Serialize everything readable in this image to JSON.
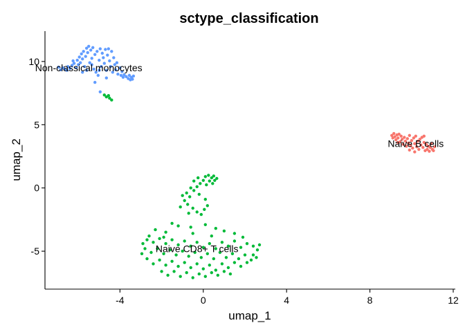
{
  "chart_data": {
    "type": "scatter",
    "title": "sctype_classification",
    "xlabel": "umap_1",
    "ylabel": "umap_2",
    "xlim": [
      -7.6,
      12.1
    ],
    "ylim": [
      -8.0,
      12.4
    ],
    "x_ticks": [
      -4,
      0,
      4,
      8,
      12
    ],
    "y_ticks": [
      -5,
      0,
      5,
      10
    ],
    "grid": false,
    "legend": "none",
    "cluster_labels": [
      {
        "text": "Non-classical monocytes",
        "x": -5.5,
        "y": 9.5
      },
      {
        "text": "Naive B cells",
        "x": 10.2,
        "y": 3.5
      },
      {
        "text": "Naive CD8+ T cells",
        "x": -0.3,
        "y": -4.8
      }
    ],
    "series": [
      {
        "color": "#619CFF",
        "points": [
          [
            -6.95,
            9.55
          ],
          [
            -6.85,
            9.35
          ],
          [
            -6.75,
            9.5
          ],
          [
            -6.65,
            9.4
          ],
          [
            -6.55,
            9.3
          ],
          [
            -6.5,
            9.6
          ],
          [
            -6.4,
            9.45
          ],
          [
            -6.3,
            9.7
          ],
          [
            -6.2,
            9.85
          ],
          [
            -6.1,
            9.5
          ],
          [
            -6.05,
            10.1
          ],
          [
            -6.0,
            9.75
          ],
          [
            -5.95,
            10.35
          ],
          [
            -5.9,
            9.9
          ],
          [
            -5.85,
            10.6
          ],
          [
            -5.8,
            10.2
          ],
          [
            -5.75,
            10.8
          ],
          [
            -5.7,
            9.6
          ],
          [
            -5.65,
            10.4
          ],
          [
            -5.6,
            11.05
          ],
          [
            -5.55,
            10.7
          ],
          [
            -5.5,
            11.2
          ],
          [
            -5.45,
            9.9
          ],
          [
            -5.4,
            10.9
          ],
          [
            -5.35,
            10.25
          ],
          [
            -5.3,
            11.1
          ],
          [
            -5.25,
            9.4
          ],
          [
            -5.2,
            10.55
          ],
          [
            -5.15,
            9.15
          ],
          [
            -5.1,
            10.8
          ],
          [
            -5.05,
            8.9
          ],
          [
            -5.0,
            10.1
          ],
          [
            -4.95,
            11.0
          ],
          [
            -4.9,
            9.6
          ],
          [
            -4.85,
            10.65
          ],
          [
            -4.8,
            10.3
          ],
          [
            -4.75,
            9.85
          ],
          [
            -4.7,
            10.95
          ],
          [
            -4.65,
            9.3
          ],
          [
            -4.6,
            10.5
          ],
          [
            -4.55,
            11.0
          ],
          [
            -4.5,
            10.05
          ],
          [
            -4.45,
            9.6
          ],
          [
            -4.4,
            10.8
          ],
          [
            -4.35,
            9.15
          ],
          [
            -4.3,
            10.3
          ],
          [
            -4.25,
            9.75
          ],
          [
            -4.2,
            9.35
          ],
          [
            -4.15,
            9.9
          ],
          [
            -4.1,
            9.0
          ],
          [
            -4.0,
            9.5
          ],
          [
            -3.95,
            8.9
          ],
          [
            -3.9,
            9.2
          ],
          [
            -3.85,
            8.75
          ],
          [
            -3.8,
            8.95
          ],
          [
            -3.7,
            8.8
          ],
          [
            -3.6,
            8.65
          ],
          [
            -3.55,
            8.9
          ],
          [
            -3.5,
            8.55
          ],
          [
            -3.45,
            8.75
          ],
          [
            -3.4,
            8.6
          ],
          [
            -3.35,
            8.85
          ],
          [
            -5.6,
            9.3
          ],
          [
            -5.35,
            9.75
          ],
          [
            -5.8,
            9.15
          ],
          [
            -6.25,
            10.05
          ],
          [
            -5.0,
            9.3
          ],
          [
            -4.65,
            8.7
          ],
          [
            -4.95,
            7.6
          ],
          [
            -5.2,
            8.35
          ]
        ]
      },
      {
        "color": "#F8766D",
        "points": [
          [
            9.05,
            4.15
          ],
          [
            9.1,
            3.95
          ],
          [
            9.15,
            4.3
          ],
          [
            9.2,
            4.05
          ],
          [
            9.25,
            3.8
          ],
          [
            9.3,
            4.2
          ],
          [
            9.35,
            3.95
          ],
          [
            9.4,
            4.25
          ],
          [
            9.45,
            3.65
          ],
          [
            9.5,
            4.1
          ],
          [
            9.55,
            3.85
          ],
          [
            9.6,
            3.45
          ],
          [
            9.65,
            4.0
          ],
          [
            9.7,
            3.7
          ],
          [
            9.75,
            3.3
          ],
          [
            9.8,
            3.9
          ],
          [
            9.85,
            3.55
          ],
          [
            9.9,
            4.15
          ],
          [
            9.95,
            3.35
          ],
          [
            10.0,
            3.75
          ],
          [
            10.05,
            3.15
          ],
          [
            10.1,
            3.95
          ],
          [
            10.15,
            3.5
          ],
          [
            10.2,
            4.1
          ],
          [
            10.25,
            3.25
          ],
          [
            10.3,
            3.7
          ],
          [
            10.35,
            3.05
          ],
          [
            10.4,
            3.85
          ],
          [
            10.45,
            3.4
          ],
          [
            10.5,
            4.0
          ],
          [
            10.55,
            3.2
          ],
          [
            10.6,
            3.6
          ],
          [
            10.65,
            2.95
          ],
          [
            10.7,
            3.45
          ],
          [
            10.75,
            3.05
          ],
          [
            10.8,
            3.3
          ],
          [
            10.85,
            2.9
          ],
          [
            10.9,
            3.2
          ],
          [
            10.95,
            3.5
          ],
          [
            11.0,
            3.05
          ],
          [
            11.05,
            2.95
          ],
          [
            11.1,
            3.25
          ],
          [
            9.35,
            3.6
          ],
          [
            9.9,
            3.0
          ],
          [
            10.6,
            4.1
          ],
          [
            10.15,
            2.85
          ]
        ]
      },
      {
        "color": "#00BA38",
        "points": [
          [
            -4.75,
            7.35
          ],
          [
            -4.65,
            7.2
          ],
          [
            -4.55,
            7.3
          ],
          [
            -4.5,
            7.1
          ],
          [
            -4.4,
            6.95
          ],
          [
            0.1,
            0.9
          ],
          [
            0.25,
            1.0
          ],
          [
            0.4,
            0.8
          ],
          [
            0.5,
            0.95
          ],
          [
            0.55,
            0.6
          ],
          [
            0.45,
            0.35
          ],
          [
            0.3,
            0.55
          ],
          [
            0.15,
            0.25
          ],
          [
            0.0,
            0.6
          ],
          [
            -0.15,
            0.35
          ],
          [
            -0.3,
            0.1
          ],
          [
            -0.45,
            -0.2
          ],
          [
            -0.6,
            0.0
          ],
          [
            -0.8,
            -0.4
          ],
          [
            -0.65,
            -0.7
          ],
          [
            -0.9,
            -1.0
          ],
          [
            -1.0,
            -0.6
          ],
          [
            -0.75,
            -1.3
          ],
          [
            -0.5,
            -1.6
          ],
          [
            -0.3,
            -1.9
          ],
          [
            -0.1,
            -2.1
          ],
          [
            0.05,
            -1.7
          ],
          [
            0.2,
            -1.4
          ],
          [
            0.1,
            -0.9
          ],
          [
            -0.2,
            -0.5
          ],
          [
            -0.45,
            0.55
          ],
          [
            -0.25,
            0.8
          ],
          [
            0.65,
            0.75
          ],
          [
            -0.7,
            -2.0
          ],
          [
            -1.1,
            -1.5
          ],
          [
            -1.5,
            -2.8
          ],
          [
            -1.2,
            -3.0
          ],
          [
            -0.6,
            -3.1
          ],
          [
            0.1,
            -2.9
          ],
          [
            0.6,
            -3.2
          ],
          [
            1.0,
            -3.4
          ],
          [
            -2.3,
            -3.3
          ],
          [
            -1.8,
            -3.5
          ],
          [
            -2.6,
            -3.8
          ],
          [
            1.5,
            -3.6
          ],
          [
            -2.7,
            -4.1
          ],
          [
            -2.4,
            -4.3
          ],
          [
            -2.1,
            -4.0
          ],
          [
            -1.8,
            -4.4
          ],
          [
            -1.5,
            -4.1
          ],
          [
            -1.2,
            -4.5
          ],
          [
            -0.9,
            -4.2
          ],
          [
            -0.6,
            -4.6
          ],
          [
            -0.3,
            -4.3
          ],
          [
            0.0,
            -4.7
          ],
          [
            0.3,
            -4.4
          ],
          [
            0.6,
            -4.8
          ],
          [
            0.9,
            -4.3
          ],
          [
            1.2,
            -4.6
          ],
          [
            1.5,
            -4.2
          ],
          [
            1.8,
            -4.7
          ],
          [
            2.1,
            -4.4
          ],
          [
            2.4,
            -4.6
          ],
          [
            2.6,
            -4.9
          ],
          [
            2.4,
            -5.3
          ],
          [
            -2.8,
            -4.8
          ],
          [
            -2.5,
            -5.1
          ],
          [
            -2.2,
            -4.8
          ],
          [
            -1.9,
            -5.2
          ],
          [
            -1.6,
            -4.9
          ],
          [
            -1.3,
            -5.3
          ],
          [
            -1.0,
            -5.0
          ],
          [
            -0.7,
            -5.4
          ],
          [
            -0.4,
            -5.1
          ],
          [
            -0.1,
            -5.5
          ],
          [
            0.2,
            -5.2
          ],
          [
            0.5,
            -5.6
          ],
          [
            0.8,
            -5.1
          ],
          [
            1.1,
            -5.5
          ],
          [
            1.4,
            -5.2
          ],
          [
            1.7,
            -5.6
          ],
          [
            2.0,
            -5.3
          ],
          [
            2.3,
            -5.7
          ],
          [
            -2.7,
            -5.6
          ],
          [
            -2.4,
            -6.0
          ],
          [
            -2.1,
            -5.7
          ],
          [
            -1.8,
            -6.1
          ],
          [
            -1.5,
            -5.8
          ],
          [
            -1.2,
            -6.2
          ],
          [
            -0.9,
            -5.9
          ],
          [
            -0.6,
            -6.3
          ],
          [
            -0.3,
            -6.0
          ],
          [
            0.0,
            -6.4
          ],
          [
            0.3,
            -6.1
          ],
          [
            0.6,
            -6.5
          ],
          [
            0.9,
            -6.0
          ],
          [
            1.2,
            -6.3
          ],
          [
            1.5,
            -5.9
          ],
          [
            1.8,
            -6.2
          ],
          [
            2.1,
            -5.9
          ],
          [
            -2.0,
            -6.6
          ],
          [
            -1.7,
            -6.9
          ],
          [
            -1.4,
            -6.6
          ],
          [
            -1.1,
            -7.0
          ],
          [
            -0.8,
            -6.7
          ],
          [
            -0.5,
            -7.1
          ],
          [
            -0.2,
            -6.8
          ],
          [
            0.1,
            -7.0
          ],
          [
            0.4,
            -6.7
          ],
          [
            0.7,
            -6.9
          ],
          [
            1.0,
            -6.6
          ],
          [
            1.3,
            -6.8
          ],
          [
            -2.9,
            -4.4
          ],
          [
            -2.95,
            -5.2
          ],
          [
            2.7,
            -4.5
          ],
          [
            2.55,
            -5.5
          ],
          [
            -0.5,
            -3.6
          ],
          [
            0.4,
            -3.8
          ],
          [
            -1.9,
            -3.9
          ],
          [
            1.9,
            -3.9
          ]
        ]
      }
    ]
  }
}
